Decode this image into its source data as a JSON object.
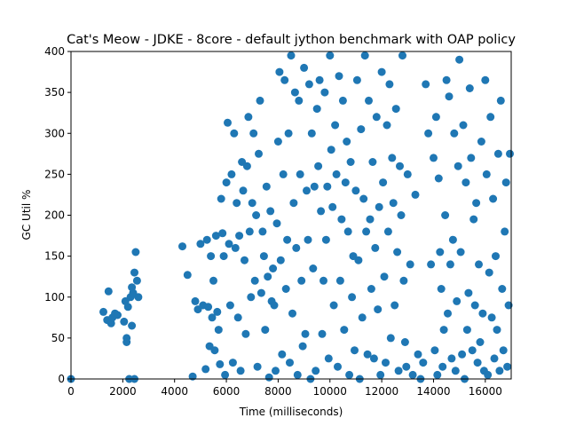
{
  "chart_data": {
    "type": "scatter",
    "title": "Cat's Meow - JDKE - 8core -  default jython benchmark with OAP policy",
    "xlabel": "Time (milliseconds)",
    "ylabel": "GC Util %",
    "xlim": [
      0,
      17000
    ],
    "ylim": [
      0,
      400
    ],
    "xticks": [
      0,
      2000,
      4000,
      6000,
      8000,
      10000,
      12000,
      14000,
      16000
    ],
    "yticks": [
      0,
      50,
      100,
      150,
      200,
      250,
      300,
      350,
      400
    ],
    "grid": false,
    "legend": "none",
    "point_color": "#1f77b4",
    "series": [
      {
        "x": [
          0,
          1250,
          1400,
          1450,
          1550,
          1600,
          1700,
          1800,
          2050,
          2100,
          2150,
          2200,
          2250,
          2300,
          2350,
          2400,
          2450,
          2500,
          2550,
          2600,
          2150,
          2350,
          2450,
          4300,
          4500,
          4700,
          4800,
          4900,
          5000,
          5100,
          5200,
          5250,
          5300,
          5350,
          5400,
          5450,
          5500,
          5550,
          5600,
          5650,
          5700,
          5750,
          5800,
          5850,
          5900,
          5950,
          6000,
          6050,
          6100,
          6150,
          6200,
          6250,
          6300,
          6350,
          6400,
          6450,
          6500,
          6550,
          6600,
          6650,
          6700,
          6750,
          6800,
          6850,
          6900,
          6950,
          7000,
          7050,
          7100,
          7150,
          7200,
          7250,
          7300,
          7350,
          7400,
          7450,
          7500,
          7550,
          7600,
          7650,
          7700,
          7750,
          7800,
          7850,
          7900,
          7950,
          8000,
          8050,
          8100,
          8150,
          8200,
          8250,
          8300,
          8350,
          8400,
          8450,
          8500,
          8550,
          8600,
          8650,
          8700,
          8750,
          8800,
          8850,
          8900,
          8950,
          9000,
          9050,
          9100,
          9150,
          9200,
          9250,
          9300,
          9350,
          9400,
          9450,
          9500,
          9550,
          9600,
          9650,
          9700,
          9750,
          9800,
          9850,
          9900,
          9950,
          10000,
          10050,
          10100,
          10150,
          10200,
          10250,
          10300,
          10350,
          10400,
          10450,
          10500,
          10550,
          10600,
          10650,
          10700,
          10750,
          10800,
          10850,
          10900,
          10950,
          11000,
          11050,
          11100,
          11150,
          11200,
          11250,
          11300,
          11350,
          11400,
          11450,
          11500,
          11550,
          11600,
          11650,
          11700,
          11750,
          11800,
          11850,
          11900,
          11950,
          12000,
          12050,
          12100,
          12150,
          12200,
          12250,
          12300,
          12350,
          12400,
          12450,
          12500,
          12550,
          12600,
          12650,
          12700,
          12750,
          12800,
          12850,
          12900,
          12950,
          13000,
          13100,
          13200,
          13300,
          13400,
          13500,
          13600,
          13700,
          13800,
          13900,
          14000,
          14050,
          14100,
          14150,
          14200,
          14250,
          14300,
          14350,
          14400,
          14450,
          14500,
          14550,
          14600,
          14650,
          14700,
          14750,
          14800,
          14850,
          14900,
          14950,
          15000,
          15050,
          15100,
          15150,
          15200,
          15250,
          15300,
          15350,
          15400,
          15450,
          15500,
          15550,
          15600,
          15650,
          15700,
          15750,
          15800,
          15850,
          15900,
          15950,
          16000,
          16050,
          16100,
          16150,
          16200,
          16250,
          16300,
          16350,
          16400,
          16450,
          16500,
          16550,
          16600,
          16650,
          16700,
          16750,
          16800,
          16850,
          16900,
          16950
        ],
        "y": [
          0,
          82,
          72,
          107,
          68,
          75,
          80,
          78,
          70,
          95,
          50,
          88,
          0,
          100,
          112,
          105,
          130,
          155,
          120,
          100,
          45,
          65,
          0,
          162,
          127,
          3,
          95,
          85,
          165,
          90,
          12,
          170,
          88,
          40,
          150,
          75,
          120,
          35,
          175,
          82,
          60,
          18,
          220,
          178,
          150,
          5,
          240,
          313,
          165,
          90,
          250,
          20,
          300,
          160,
          215,
          75,
          175,
          10,
          265,
          230,
          145,
          55,
          260,
          320,
          180,
          100,
          215,
          300,
          120,
          200,
          15,
          275,
          340,
          105,
          180,
          150,
          60,
          235,
          125,
          2,
          205,
          95,
          135,
          90,
          10,
          190,
          290,
          375,
          145,
          30,
          250,
          365,
          110,
          170,
          300,
          20,
          395,
          80,
          215,
          350,
          160,
          5,
          340,
          250,
          120,
          40,
          380,
          55,
          230,
          170,
          360,
          0,
          300,
          135,
          235,
          10,
          330,
          260,
          365,
          205,
          55,
          120,
          350,
          170,
          235,
          25,
          395,
          280,
          210,
          90,
          310,
          250,
          15,
          370,
          120,
          195,
          340,
          60,
          240,
          290,
          180,
          5,
          265,
          100,
          150,
          35,
          230,
          365,
          145,
          0,
          305,
          75,
          220,
          395,
          180,
          30,
          340,
          195,
          110,
          265,
          25,
          160,
          320,
          85,
          210,
          5,
          375,
          240,
          125,
          20,
          310,
          180,
          360,
          50,
          270,
          215,
          90,
          330,
          155,
          10,
          260,
          200,
          395,
          120,
          45,
          15,
          250,
          140,
          5,
          225,
          30,
          0,
          20,
          360,
          300,
          140,
          270,
          35,
          320,
          5,
          245,
          155,
          110,
          15,
          60,
          200,
          365,
          80,
          345,
          140,
          25,
          170,
          300,
          10,
          95,
          260,
          390,
          155,
          30,
          310,
          0,
          240,
          60,
          105,
          355,
          270,
          35,
          195,
          90,
          215,
          20,
          140,
          45,
          290,
          80,
          10,
          365,
          250,
          5,
          130,
          320,
          75,
          220,
          25,
          150,
          60,
          275,
          10,
          340,
          110,
          35,
          180,
          240,
          15,
          90,
          275
        ]
      }
    ]
  }
}
